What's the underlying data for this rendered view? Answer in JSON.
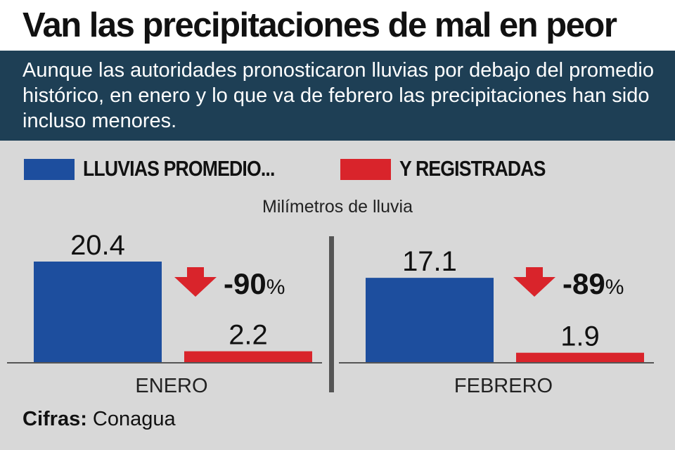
{
  "header": {
    "title": "Van las precipitaciones de mal en peor",
    "subtitle": "Aunque las autoridades pronosticaron lluvias por debajo del promedio histórico, en enero y lo que va de febrero las precipitaciones han sido incluso menores."
  },
  "colors": {
    "promedio": "#1d4e9e",
    "registradas": "#d9242b",
    "header_bar": "#1e3f55",
    "background": "#d8d8d8"
  },
  "source": {
    "label": "Cifras:",
    "name": "Conagua"
  },
  "chart_data": {
    "type": "bar",
    "ylabel": "Milímetros de lluvia",
    "categories": [
      "ENERO",
      "FEBRERO"
    ],
    "series": [
      {
        "name": "LLUVIAS PROMEDIO...",
        "values": [
          20.4,
          17.1
        ],
        "labels": [
          "20.4",
          "17.1"
        ]
      },
      {
        "name": "Y REGISTRADAS",
        "values": [
          2.2,
          1.9
        ],
        "labels": [
          "2.2",
          "1.9"
        ]
      }
    ],
    "annotations": [
      {
        "category": "ENERO",
        "icon": "down-arrow-icon",
        "text": "-90",
        "unit": "%"
      },
      {
        "category": "FEBRERO",
        "icon": "down-arrow-icon",
        "text": "-89",
        "unit": "%"
      }
    ],
    "ylim": [
      0,
      22
    ],
    "grid": false,
    "legend": "top"
  }
}
